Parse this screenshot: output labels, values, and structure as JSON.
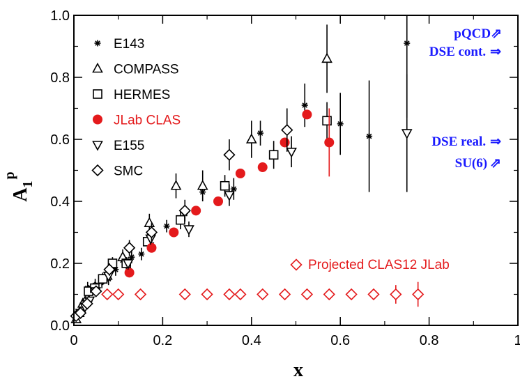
{
  "chart_data": {
    "type": "scatter",
    "title": "",
    "xlabel": "x",
    "ylabel_main": "A",
    "ylabel_sub": "1",
    "ylabel_sup": "p",
    "xlim": [
      0,
      1
    ],
    "ylim": [
      0,
      1
    ],
    "x_ticks": [
      {
        "v": 0,
        "label": "0"
      },
      {
        "v": 0.2,
        "label": "0.2"
      },
      {
        "v": 0.4,
        "label": "0.4"
      },
      {
        "v": 0.6,
        "label": "0.6"
      },
      {
        "v": 0.8,
        "label": "0.8"
      },
      {
        "v": 1,
        "label": "1"
      }
    ],
    "y_ticks": [
      {
        "v": 0,
        "label": "0.0"
      },
      {
        "v": 0.2,
        "label": "0.2"
      },
      {
        "v": 0.4,
        "label": "0.4"
      },
      {
        "v": 0.6,
        "label": "0.6"
      },
      {
        "v": 0.8,
        "label": "0.8"
      },
      {
        "v": 1,
        "label": "1.0"
      }
    ],
    "grid": false,
    "legend_position": "top-left",
    "series": [
      {
        "name": "E143",
        "marker": "star",
        "color": "#000000",
        "points": [
          {
            "x": 0.031,
            "y": 0.12,
            "e": 0.02
          },
          {
            "x": 0.048,
            "y": 0.13,
            "e": 0.02
          },
          {
            "x": 0.063,
            "y": 0.14,
            "e": 0.02
          },
          {
            "x": 0.078,
            "y": 0.15,
            "e": 0.02
          },
          {
            "x": 0.094,
            "y": 0.18,
            "e": 0.02
          },
          {
            "x": 0.11,
            "y": 0.21,
            "e": 0.02
          },
          {
            "x": 0.13,
            "y": 0.22,
            "e": 0.02
          },
          {
            "x": 0.152,
            "y": 0.23,
            "e": 0.02
          },
          {
            "x": 0.175,
            "y": 0.26,
            "e": 0.02
          },
          {
            "x": 0.209,
            "y": 0.32,
            "e": 0.02
          },
          {
            "x": 0.25,
            "y": 0.36,
            "e": 0.025
          },
          {
            "x": 0.29,
            "y": 0.43,
            "e": 0.03
          },
          {
            "x": 0.36,
            "y": 0.44,
            "e": 0.035
          },
          {
            "x": 0.42,
            "y": 0.62,
            "e": 0.04
          },
          {
            "x": 0.52,
            "y": 0.71,
            "e": 0.07
          },
          {
            "x": 0.6,
            "y": 0.65,
            "e": 0.1
          },
          {
            "x": 0.665,
            "y": 0.61,
            "e": 0.18
          },
          {
            "x": 0.75,
            "y": 0.91,
            "e": 0.24
          }
        ]
      },
      {
        "name": "COMPASS",
        "marker": "triangle-up",
        "color": "#000000",
        "points": [
          {
            "x": 0.005,
            "y": 0.02,
            "e": 0.01
          },
          {
            "x": 0.012,
            "y": 0.04,
            "e": 0.01
          },
          {
            "x": 0.02,
            "y": 0.07,
            "e": 0.01
          },
          {
            "x": 0.03,
            "y": 0.09,
            "e": 0.012
          },
          {
            "x": 0.05,
            "y": 0.12,
            "e": 0.015
          },
          {
            "x": 0.075,
            "y": 0.16,
            "e": 0.02
          },
          {
            "x": 0.11,
            "y": 0.22,
            "e": 0.025
          },
          {
            "x": 0.17,
            "y": 0.33,
            "e": 0.03
          },
          {
            "x": 0.23,
            "y": 0.45,
            "e": 0.04
          },
          {
            "x": 0.29,
            "y": 0.45,
            "e": 0.05
          },
          {
            "x": 0.4,
            "y": 0.6,
            "e": 0.06
          },
          {
            "x": 0.57,
            "y": 0.86,
            "e": 0.11
          }
        ]
      },
      {
        "name": "HERMES",
        "marker": "square",
        "color": "#000000",
        "points": [
          {
            "x": 0.033,
            "y": 0.11,
            "e": 0.02
          },
          {
            "x": 0.047,
            "y": 0.12,
            "e": 0.02
          },
          {
            "x": 0.065,
            "y": 0.15,
            "e": 0.02
          },
          {
            "x": 0.087,
            "y": 0.2,
            "e": 0.02
          },
          {
            "x": 0.118,
            "y": 0.2,
            "e": 0.02
          },
          {
            "x": 0.166,
            "y": 0.27,
            "e": 0.025
          },
          {
            "x": 0.24,
            "y": 0.34,
            "e": 0.03
          },
          {
            "x": 0.34,
            "y": 0.45,
            "e": 0.035
          },
          {
            "x": 0.45,
            "y": 0.55,
            "e": 0.045
          },
          {
            "x": 0.57,
            "y": 0.66,
            "e": 0.06
          }
        ]
      },
      {
        "name": "JLab CLAS",
        "marker": "circle",
        "color": "#e41a1c",
        "points": [
          {
            "x": 0.125,
            "y": 0.17,
            "e": 0.0
          },
          {
            "x": 0.175,
            "y": 0.25,
            "e": 0.0
          },
          {
            "x": 0.225,
            "y": 0.3,
            "e": 0.0
          },
          {
            "x": 0.275,
            "y": 0.37,
            "e": 0.0
          },
          {
            "x": 0.325,
            "y": 0.4,
            "e": 0.0
          },
          {
            "x": 0.375,
            "y": 0.49,
            "e": 0.0
          },
          {
            "x": 0.425,
            "y": 0.51,
            "e": 0.0
          },
          {
            "x": 0.475,
            "y": 0.59,
            "e": 0.0
          },
          {
            "x": 0.525,
            "y": 0.68,
            "e": 0.0
          },
          {
            "x": 0.575,
            "y": 0.59,
            "e": 0.11
          }
        ]
      },
      {
        "name": "E155",
        "marker": "triangle-down",
        "color": "#000000",
        "points": [
          {
            "x": 0.015,
            "y": 0.04,
            "e": 0.01
          },
          {
            "x": 0.025,
            "y": 0.06,
            "e": 0.01
          },
          {
            "x": 0.035,
            "y": 0.08,
            "e": 0.01
          },
          {
            "x": 0.049,
            "y": 0.11,
            "e": 0.015
          },
          {
            "x": 0.078,
            "y": 0.16,
            "e": 0.015
          },
          {
            "x": 0.122,
            "y": 0.2,
            "e": 0.02
          },
          {
            "x": 0.173,
            "y": 0.28,
            "e": 0.02
          },
          {
            "x": 0.259,
            "y": 0.31,
            "e": 0.025
          },
          {
            "x": 0.35,
            "y": 0.42,
            "e": 0.035
          },
          {
            "x": 0.49,
            "y": 0.56,
            "e": 0.05
          },
          {
            "x": 0.75,
            "y": 0.62,
            "e": 0.19
          }
        ]
      },
      {
        "name": "SMC",
        "marker": "diamond",
        "color": "#000000",
        "points": [
          {
            "x": 0.005,
            "y": 0.03,
            "e": 0.01
          },
          {
            "x": 0.015,
            "y": 0.04,
            "e": 0.01
          },
          {
            "x": 0.03,
            "y": 0.07,
            "e": 0.015
          },
          {
            "x": 0.05,
            "y": 0.11,
            "e": 0.015
          },
          {
            "x": 0.08,
            "y": 0.18,
            "e": 0.02
          },
          {
            "x": 0.125,
            "y": 0.25,
            "e": 0.025
          },
          {
            "x": 0.175,
            "y": 0.3,
            "e": 0.03
          },
          {
            "x": 0.25,
            "y": 0.37,
            "e": 0.035
          },
          {
            "x": 0.35,
            "y": 0.55,
            "e": 0.05
          },
          {
            "x": 0.48,
            "y": 0.63,
            "e": 0.07
          }
        ]
      },
      {
        "name": "Projected CLAS12 JLab",
        "marker": "diamond",
        "color": "#e41a1c",
        "points": [
          {
            "x": 0.075,
            "y": 0.1,
            "e": 0.0
          },
          {
            "x": 0.1,
            "y": 0.1,
            "e": 0.0
          },
          {
            "x": 0.15,
            "y": 0.1,
            "e": 0.0
          },
          {
            "x": 0.25,
            "y": 0.1,
            "e": 0.0
          },
          {
            "x": 0.3,
            "y": 0.1,
            "e": 0.0
          },
          {
            "x": 0.35,
            "y": 0.1,
            "e": 0.0
          },
          {
            "x": 0.375,
            "y": 0.1,
            "e": 0.0
          },
          {
            "x": 0.425,
            "y": 0.1,
            "e": 0.0
          },
          {
            "x": 0.475,
            "y": 0.1,
            "e": 0.0
          },
          {
            "x": 0.525,
            "y": 0.1,
            "e": 0.0
          },
          {
            "x": 0.575,
            "y": 0.1,
            "e": 0.0
          },
          {
            "x": 0.625,
            "y": 0.1,
            "e": 0.0
          },
          {
            "x": 0.675,
            "y": 0.1,
            "e": 0.0
          },
          {
            "x": 0.725,
            "y": 0.1,
            "e": 0.03
          },
          {
            "x": 0.775,
            "y": 0.1,
            "e": 0.04
          }
        ]
      }
    ],
    "legend": [
      {
        "label": "E143",
        "marker": "star",
        "color": "#000000",
        "text_color": "#000000"
      },
      {
        "label": "COMPASS",
        "marker": "triangle-up",
        "color": "#000000",
        "text_color": "#000000"
      },
      {
        "label": "HERMES",
        "marker": "square",
        "color": "#000000",
        "text_color": "#000000"
      },
      {
        "label": "JLab CLAS",
        "marker": "circle",
        "color": "#e41a1c",
        "text_color": "#e41a1c"
      },
      {
        "label": "E155",
        "marker": "triangle-down",
        "color": "#000000",
        "text_color": "#000000"
      },
      {
        "label": "SMC",
        "marker": "diamond",
        "color": "#000000",
        "text_color": "#000000"
      }
    ],
    "projection_label": "Projected CLAS12 JLab",
    "annotations": [
      {
        "label": "pQCD",
        "arrow": "⇗",
        "color": "#1a1aff"
      },
      {
        "label": "DSE cont.",
        "arrow": "⇒",
        "color": "#1a1aff"
      },
      {
        "label": "DSE real.",
        "arrow": "⇒",
        "color": "#1a1aff"
      },
      {
        "label": "SU(6)",
        "arrow": "⇗",
        "color": "#1a1aff"
      }
    ]
  }
}
